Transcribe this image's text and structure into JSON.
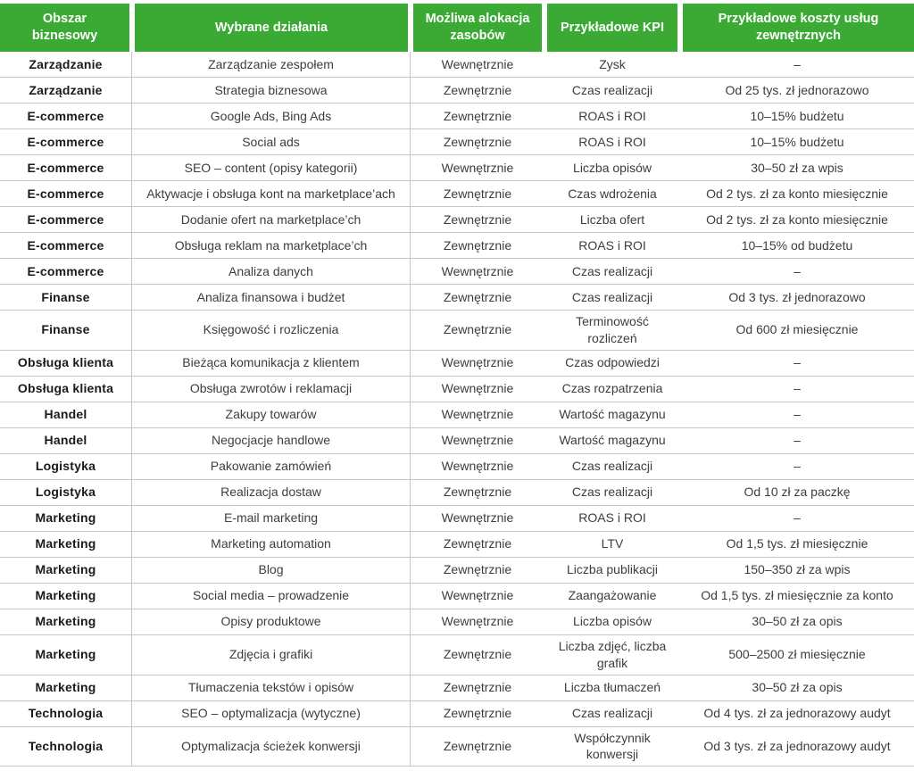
{
  "colors": {
    "header_bg": "#3aaa35",
    "header_text": "#ffffff",
    "row_border": "#c5c5c5",
    "body_text": "#3d3d3d",
    "area_text": "#1a1a1a"
  },
  "chart_data": {
    "type": "table",
    "columns": [
      "Obszar biznesowy",
      "Wybrane działania",
      "Możliwa alokacja zasobów",
      "Przykładowe KPI",
      "Przykładowe koszty usług zewnętrznych"
    ],
    "rows": [
      [
        "Zarządzanie",
        "Zarządzanie zespołem",
        "Wewnętrznie",
        "Zysk",
        "–"
      ],
      [
        "Zarządzanie",
        "Strategia biznesowa",
        "Zewnętrznie",
        "Czas realizacji",
        "Od 25 tys. zł jednorazowo"
      ],
      [
        "E-commerce",
        "Google Ads, Bing Ads",
        "Zewnętrznie",
        "ROAS i ROI",
        "10–15% budżetu"
      ],
      [
        "E-commerce",
        "Social ads",
        "Zewnętrznie",
        "ROAS i ROI",
        "10–15% budżetu"
      ],
      [
        "E-commerce",
        "SEO – content (opisy kategorii)",
        "Wewnętrznie",
        "Liczba opisów",
        "30–50 zł za wpis"
      ],
      [
        "E-commerce",
        "Aktywacje i obsługa kont na marketplace’ach",
        "Zewnętrznie",
        "Czas wdrożenia",
        "Od 2 tys. zł za konto miesięcznie"
      ],
      [
        "E-commerce",
        "Dodanie ofert na marketplace’ch",
        "Zewnętrznie",
        "Liczba ofert",
        "Od 2 tys. zł za konto miesięcznie"
      ],
      [
        "E-commerce",
        "Obsługa reklam na marketplace’ch",
        "Zewnętrznie",
        "ROAS i ROI",
        "10–15% od budżetu"
      ],
      [
        "E-commerce",
        "Analiza danych",
        "Wewnętrznie",
        "Czas realizacji",
        "–"
      ],
      [
        "Finanse",
        "Analiza finansowa i budżet",
        "Zewnętrznie",
        "Czas realizacji",
        "Od 3 tys. zł jednorazowo"
      ],
      [
        "Finanse",
        "Księgowość i rozliczenia",
        "Zewnętrznie",
        "Terminowość rozliczeń",
        "Od 600 zł miesięcznie"
      ],
      [
        "Obsługa klienta",
        "Bieżąca komunikacja z klientem",
        "Wewnętrznie",
        "Czas odpowiedzi",
        "–"
      ],
      [
        "Obsługa klienta",
        "Obsługa zwrotów i reklamacji",
        "Wewnętrznie",
        "Czas rozpatrzenia",
        "–"
      ],
      [
        "Handel",
        "Zakupy towarów",
        "Wewnętrznie",
        "Wartość magazynu",
        "–"
      ],
      [
        "Handel",
        "Negocjacje handlowe",
        "Wewnętrznie",
        "Wartość magazynu",
        "–"
      ],
      [
        "Logistyka",
        "Pakowanie zamówień",
        "Wewnętrznie",
        "Czas realizacji",
        "–"
      ],
      [
        "Logistyka",
        "Realizacja dostaw",
        "Zewnętrznie",
        "Czas realizacji",
        "Od 10 zł za paczkę"
      ],
      [
        "Marketing",
        "E-mail marketing",
        "Wewnętrznie",
        "ROAS i ROI",
        "–"
      ],
      [
        "Marketing",
        "Marketing automation",
        "Zewnętrznie",
        "LTV",
        "Od 1,5 tys. zł miesięcznie"
      ],
      [
        "Marketing",
        "Blog",
        "Zewnętrznie",
        "Liczba publikacji",
        "150–350 zł za wpis"
      ],
      [
        "Marketing",
        "Social media – prowadzenie",
        "Wewnętrznie",
        "Zaangażowanie",
        "Od 1,5 tys. zł miesięcznie za konto"
      ],
      [
        "Marketing",
        "Opisy produktowe",
        "Wewnętrznie",
        "Liczba opisów",
        "30–50 zł za opis"
      ],
      [
        "Marketing",
        "Zdjęcia i grafiki",
        "Zewnętrznie",
        "Liczba zdjęć, liczba grafik",
        "500–2500 zł miesięcznie"
      ],
      [
        "Marketing",
        "Tłumaczenia tekstów i opisów",
        "Zewnętrznie",
        "Liczba tłumaczeń",
        "30–50 zł za opis"
      ],
      [
        "Technologia",
        "SEO – optymalizacja (wytyczne)",
        "Zewnętrznie",
        "Czas realizacji",
        "Od 4 tys. zł za jednorazowy audyt"
      ],
      [
        "Technologia",
        "Optymalizacja ścieżek konwersji",
        "Zewnętrznie",
        "Współczynnik konwersji",
        "Od 3 tys. zł za jednorazowy audyt"
      ]
    ]
  }
}
